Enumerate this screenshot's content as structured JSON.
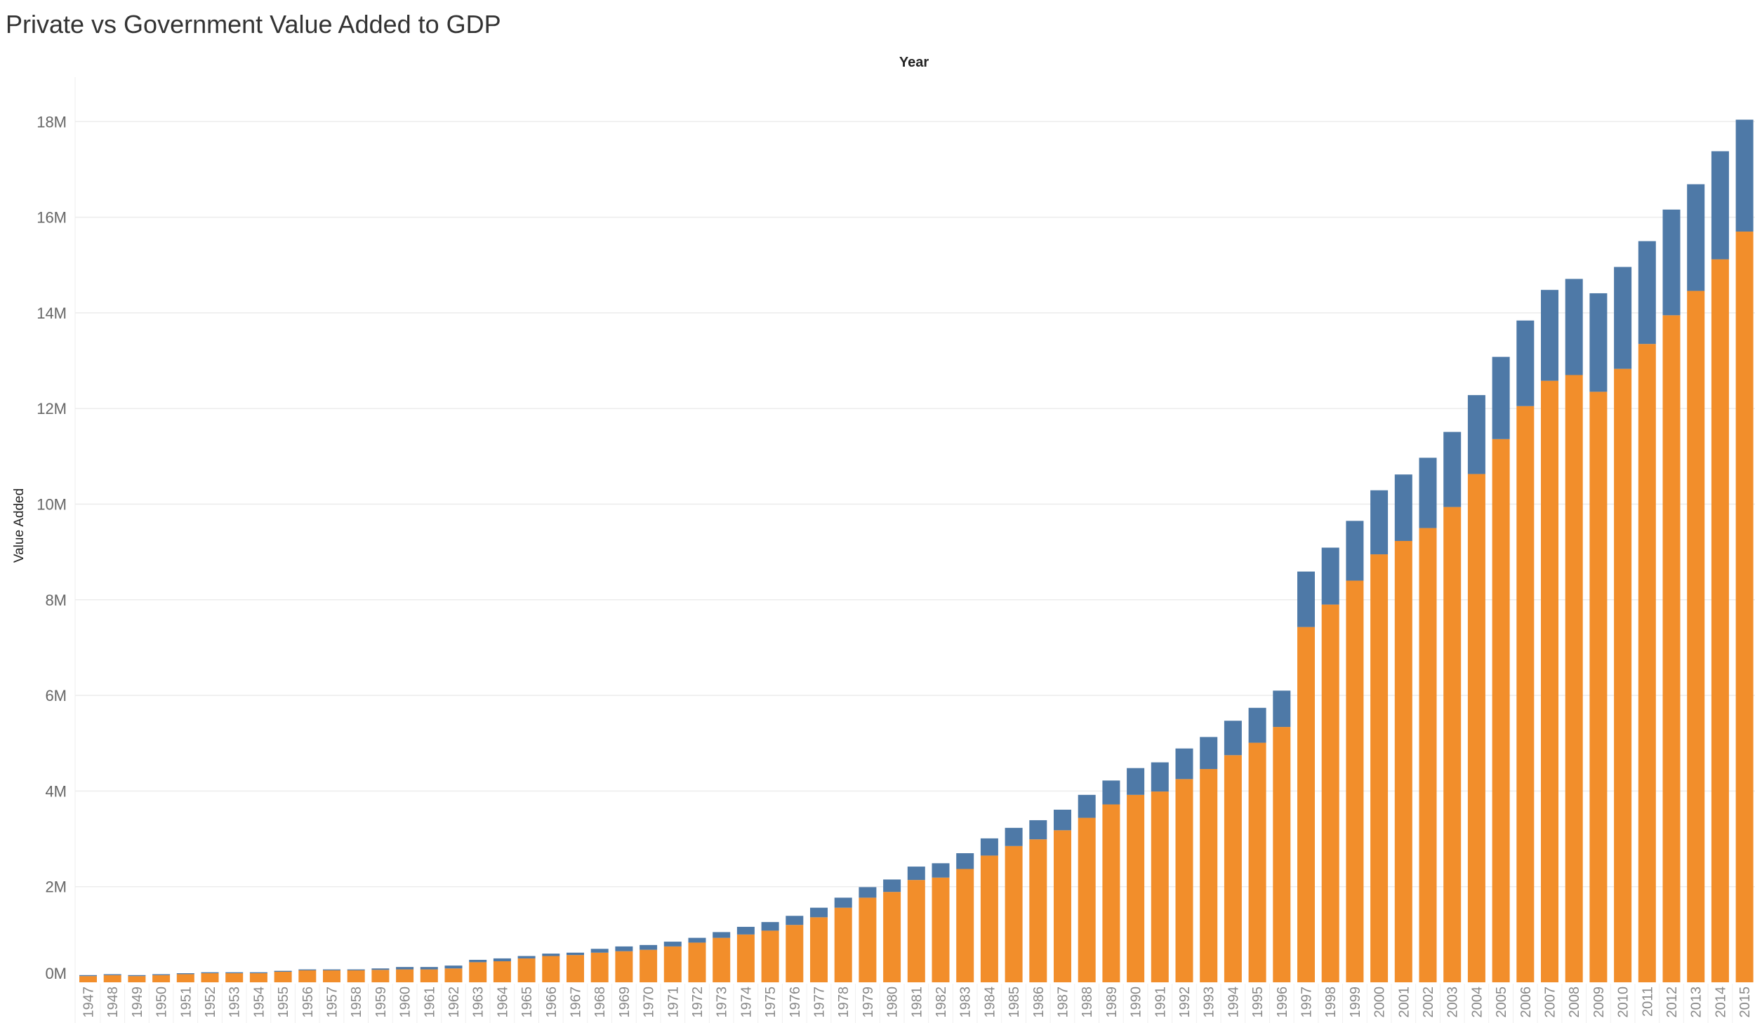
{
  "chart_data": {
    "type": "bar",
    "stacked": true,
    "title": "Private vs Government Value Added to GDP",
    "xlabel": "Year",
    "ylabel": "Value Added",
    "ylim": [
      0,
      18
    ],
    "yticks": [
      "0M",
      "2M",
      "4M",
      "6M",
      "8M",
      "10M",
      "12M",
      "14M",
      "16M",
      "18M"
    ],
    "ytick_values": [
      0,
      2,
      4,
      6,
      8,
      10,
      12,
      14,
      16,
      18
    ],
    "grid": true,
    "legend": "none",
    "colors": {
      "private": "#F28E2B",
      "government": "#4E79A7"
    },
    "categories": [
      "1947",
      "1948",
      "1949",
      "1950",
      "1951",
      "1952",
      "1953",
      "1954",
      "1955",
      "1956",
      "1957",
      "1958",
      "1959",
      "1960",
      "1961",
      "1962",
      "1963",
      "1964",
      "1965",
      "1966",
      "1967",
      "1968",
      "1969",
      "1970",
      "1971",
      "1972",
      "1973",
      "1974",
      "1975",
      "1976",
      "1977",
      "1978",
      "1979",
      "1980",
      "1981",
      "1982",
      "1983",
      "1984",
      "1985",
      "1986",
      "1987",
      "1988",
      "1989",
      "1990",
      "1991",
      "1992",
      "1993",
      "1994",
      "1995",
      "1996",
      "1997",
      "1998",
      "1999",
      "2000",
      "2001",
      "2002",
      "2003",
      "2004",
      "2005",
      "2006",
      "2007",
      "2008",
      "2009",
      "2010",
      "2011",
      "2012",
      "2013",
      "2014",
      "2015"
    ],
    "series": [
      {
        "key": "private",
        "values": [
          0.13,
          0.15,
          0.13,
          0.15,
          0.17,
          0.19,
          0.19,
          0.19,
          0.22,
          0.25,
          0.25,
          0.25,
          0.26,
          0.27,
          0.27,
          0.29,
          0.42,
          0.44,
          0.5,
          0.55,
          0.57,
          0.62,
          0.65,
          0.68,
          0.75,
          0.83,
          0.93,
          1.0,
          1.08,
          1.2,
          1.36,
          1.56,
          1.77,
          1.89,
          2.14,
          2.19,
          2.37,
          2.65,
          2.85,
          2.99,
          3.18,
          3.44,
          3.72,
          3.92,
          3.99,
          4.25,
          4.46,
          4.75,
          5.01,
          5.34,
          7.43,
          7.9,
          8.4,
          8.95,
          9.23,
          9.5,
          9.94,
          10.63,
          11.36,
          12.05,
          12.58,
          12.7,
          12.35,
          12.83,
          13.35,
          13.95,
          14.46,
          15.12,
          15.7
        ]
      },
      {
        "key": "government",
        "values": [
          0.02,
          0.02,
          0.02,
          0.02,
          0.02,
          0.02,
          0.02,
          0.02,
          0.02,
          0.02,
          0.02,
          0.02,
          0.03,
          0.05,
          0.05,
          0.06,
          0.05,
          0.06,
          0.05,
          0.05,
          0.05,
          0.08,
          0.1,
          0.1,
          0.1,
          0.1,
          0.12,
          0.16,
          0.18,
          0.19,
          0.2,
          0.21,
          0.22,
          0.26,
          0.28,
          0.3,
          0.33,
          0.36,
          0.38,
          0.4,
          0.43,
          0.48,
          0.5,
          0.56,
          0.61,
          0.64,
          0.67,
          0.72,
          0.73,
          0.76,
          1.16,
          1.19,
          1.25,
          1.34,
          1.39,
          1.47,
          1.57,
          1.65,
          1.72,
          1.79,
          1.9,
          2.01,
          2.06,
          2.13,
          2.15,
          2.21,
          2.23,
          2.26,
          2.34
        ]
      }
    ]
  }
}
